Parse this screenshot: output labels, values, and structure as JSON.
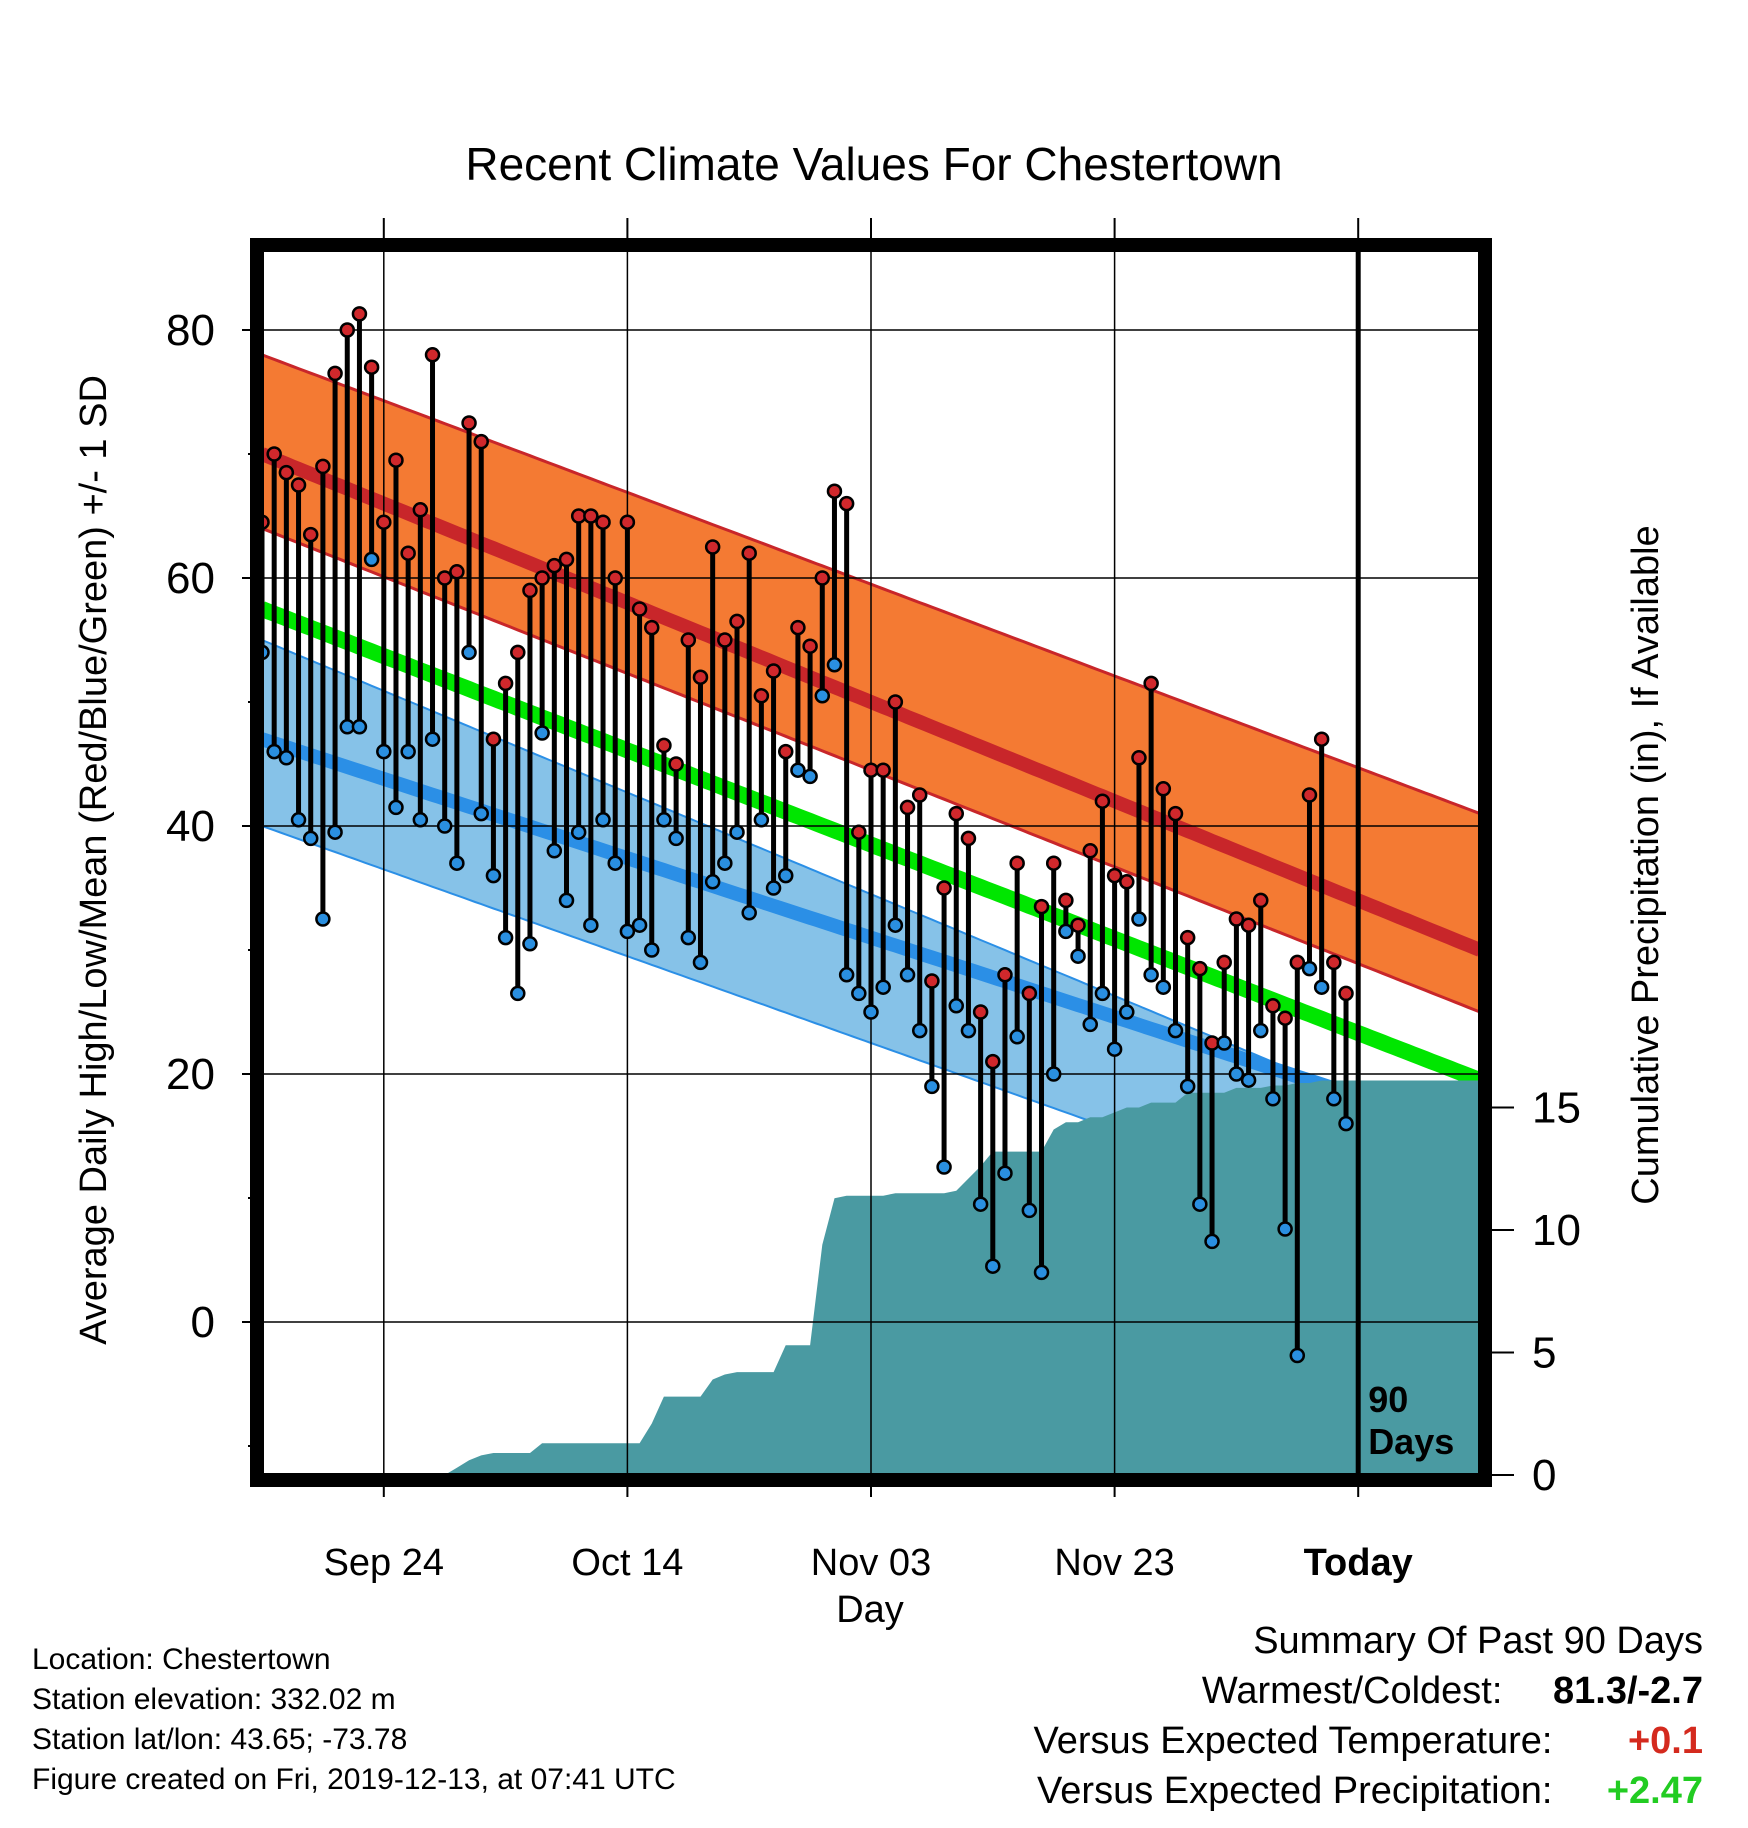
{
  "chart_data": {
    "type": "line",
    "title": "Recent Climate Values For Chestertown",
    "xlabel": "Day",
    "ylabel": "Average Daily High/Low/Mean (Red/Blue/Green) +/- 1 SD",
    "y2label": "Cumulative Precipitation (in), If Available",
    "xticks": [
      "Sep 24",
      "Oct 14",
      "Nov 03",
      "Nov 23",
      "Today"
    ],
    "yticks": [
      0,
      20,
      40,
      60,
      80
    ],
    "y2ticks": [
      0,
      5,
      10,
      15
    ],
    "ylim": [
      -12,
      87
    ],
    "y2lim": [
      0,
      30
    ],
    "today_label": "90\nDays",
    "grid": true,
    "colors": {
      "high_band": "#f47a33",
      "high_mean": "#c8262a",
      "low_band": "#86c2e8",
      "low_mean": "#2b8fe6",
      "mean": "#00e600",
      "overlap": "#8f1418",
      "precip": "#4a9aa2",
      "high_marker": "#d0282c",
      "low_marker": "#2a8fe0"
    },
    "normals": {
      "day_start": 1,
      "day_end": 101,
      "high_mean": [
        70,
        30
      ],
      "high_upper": [
        78,
        41
      ],
      "high_lower": [
        64,
        25
      ],
      "mean": [
        57.5,
        19.5
      ],
      "low_mean": [
        47,
        15
      ],
      "low_upper": [
        55,
        14
      ],
      "low_lower": [
        40,
        5
      ]
    },
    "series": [
      {
        "name": "High",
        "x": [
          1,
          2,
          3,
          4,
          5,
          6,
          7,
          8,
          9,
          10,
          11,
          12,
          13,
          14,
          15,
          16,
          17,
          18,
          19,
          20,
          21,
          22,
          23,
          24,
          25,
          26,
          27,
          28,
          29,
          30,
          31,
          32,
          33,
          34,
          35,
          36,
          37,
          38,
          39,
          40,
          41,
          42,
          43,
          44,
          45,
          46,
          47,
          48,
          49,
          50,
          51,
          52,
          53,
          54,
          55,
          56,
          57,
          58,
          59,
          60,
          61,
          62,
          63,
          64,
          65,
          66,
          67,
          68,
          69,
          70,
          71,
          72,
          73,
          74,
          75,
          76,
          77,
          78,
          79,
          80,
          81,
          82,
          83,
          84,
          85,
          86,
          87,
          88,
          89,
          90
        ],
        "values": [
          64.5,
          70,
          68.5,
          67.5,
          63.5,
          69,
          76.5,
          80,
          81.3,
          77,
          64.5,
          69.5,
          62,
          65.5,
          78,
          60,
          60.5,
          72.5,
          71,
          47,
          51.5,
          54,
          59,
          60,
          61,
          61.5,
          65,
          65,
          64.5,
          60,
          64.5,
          57.5,
          56,
          46.5,
          45,
          55,
          52,
          62.5,
          55,
          56.5,
          62,
          50.5,
          52.5,
          46,
          56,
          54.5,
          60,
          67,
          66,
          39.5,
          44.5,
          44.5,
          50,
          41.5,
          42.5,
          27.5,
          35,
          41,
          39,
          25,
          21,
          28,
          37,
          26.5,
          33.5,
          37,
          34,
          32,
          38,
          42,
          36,
          35.5,
          45.5,
          51.5,
          43,
          41,
          31,
          28.5,
          22.5,
          29,
          32.5,
          32,
          34,
          25.5,
          24.5,
          29,
          42.5,
          47,
          29,
          26.5
        ]
      },
      {
        "name": "Low",
        "x": [
          1,
          2,
          3,
          4,
          5,
          6,
          7,
          8,
          9,
          10,
          11,
          12,
          13,
          14,
          15,
          16,
          17,
          18,
          19,
          20,
          21,
          22,
          23,
          24,
          25,
          26,
          27,
          28,
          29,
          30,
          31,
          32,
          33,
          34,
          35,
          36,
          37,
          38,
          39,
          40,
          41,
          42,
          43,
          44,
          45,
          46,
          47,
          48,
          49,
          50,
          51,
          52,
          53,
          54,
          55,
          56,
          57,
          58,
          59,
          60,
          61,
          62,
          63,
          64,
          65,
          66,
          67,
          68,
          69,
          70,
          71,
          72,
          73,
          74,
          75,
          76,
          77,
          78,
          79,
          80,
          81,
          82,
          83,
          84,
          85,
          86,
          87,
          88,
          89,
          90
        ],
        "values": [
          54,
          46,
          45.5,
          40.5,
          39,
          32.5,
          39.5,
          48,
          48,
          61.5,
          46,
          41.5,
          46,
          40.5,
          47,
          40,
          37,
          54,
          41,
          36,
          31,
          26.5,
          30.5,
          47.5,
          38,
          34,
          39.5,
          32,
          40.5,
          37,
          31.5,
          32,
          30,
          40.5,
          39,
          31,
          29,
          35.5,
          37,
          39.5,
          33,
          40.5,
          35,
          36,
          44.5,
          44,
          50.5,
          53,
          28,
          26.5,
          25,
          27,
          32,
          28,
          23.5,
          19,
          12.5,
          25.5,
          23.5,
          9.5,
          4.5,
          12,
          23,
          9,
          4,
          20,
          31.5,
          29.5,
          24,
          26.5,
          22,
          25,
          32.5,
          28,
          27,
          23.5,
          19,
          9.5,
          6.5,
          22.5,
          20,
          19.5,
          23.5,
          18,
          7.5,
          -2.7,
          28.5,
          27,
          18,
          16
        ]
      },
      {
        "name": "Precipitation",
        "x": [
          1,
          16,
          17,
          18,
          19,
          20,
          21,
          23,
          24,
          25,
          29,
          30,
          31,
          32,
          33,
          34,
          35,
          36,
          37,
          38,
          39,
          40,
          41,
          42,
          43,
          44,
          45,
          46,
          47,
          48,
          49,
          50,
          51,
          52,
          53,
          54,
          55,
          56,
          57,
          58,
          60,
          61,
          62,
          63,
          64,
          65,
          66,
          67,
          68,
          69,
          70,
          71,
          72,
          73,
          74,
          75,
          76,
          77,
          78,
          79,
          80,
          81,
          82,
          83,
          84,
          85,
          86,
          87,
          88,
          89,
          90,
          91,
          92,
          93,
          94,
          95,
          96,
          97,
          98,
          99,
          100,
          101
        ],
        "values": [
          0,
          0,
          0.3,
          0.6,
          0.8,
          0.9,
          0.9,
          0.9,
          1.3,
          1.3,
          1.3,
          1.3,
          1.3,
          1.3,
          2.1,
          3.2,
          3.2,
          3.2,
          3.2,
          3.9,
          4.1,
          4.2,
          4.2,
          4.2,
          4.2,
          5.3,
          5.3,
          5.3,
          9.4,
          11.3,
          11.4,
          11.4,
          11.4,
          11.4,
          11.5,
          11.5,
          11.5,
          11.5,
          11.5,
          11.6,
          12.6,
          13.2,
          13.2,
          13.2,
          13.2,
          13.2,
          14.1,
          14.4,
          14.4,
          14.6,
          14.6,
          14.8,
          15.0,
          15.0,
          15.2,
          15.2,
          15.2,
          15.6,
          15.6,
          15.6,
          15.6,
          15.8,
          15.8,
          15.8,
          15.9,
          15.9,
          16.0,
          16.0,
          16.1,
          16.1,
          16.1,
          16.1,
          16.1,
          16.1,
          16.1,
          16.1,
          16.1,
          16.1,
          16.1,
          16.1,
          16.1,
          16.1
        ]
      }
    ]
  },
  "footer": {
    "location": "Location: Chestertown",
    "elevation": "Station elevation: 332.02 m",
    "latlon": "Station lat/lon: 43.65; -73.78",
    "created": "Figure created on Fri, 2019-12-13, at 07:41 UTC"
  },
  "summary": {
    "title": "Summary Of Past 90 Days",
    "warm_cold_label": "Warmest/Coldest:",
    "warm_cold_value": "81.3/-2.7",
    "temp_label": "Versus Expected Temperature:",
    "temp_value": "+0.1",
    "temp_color": "#d42a1e",
    "precip_label": "Versus Expected Precipitation:",
    "precip_value": "+2.47",
    "precip_color": "#22cc22"
  }
}
